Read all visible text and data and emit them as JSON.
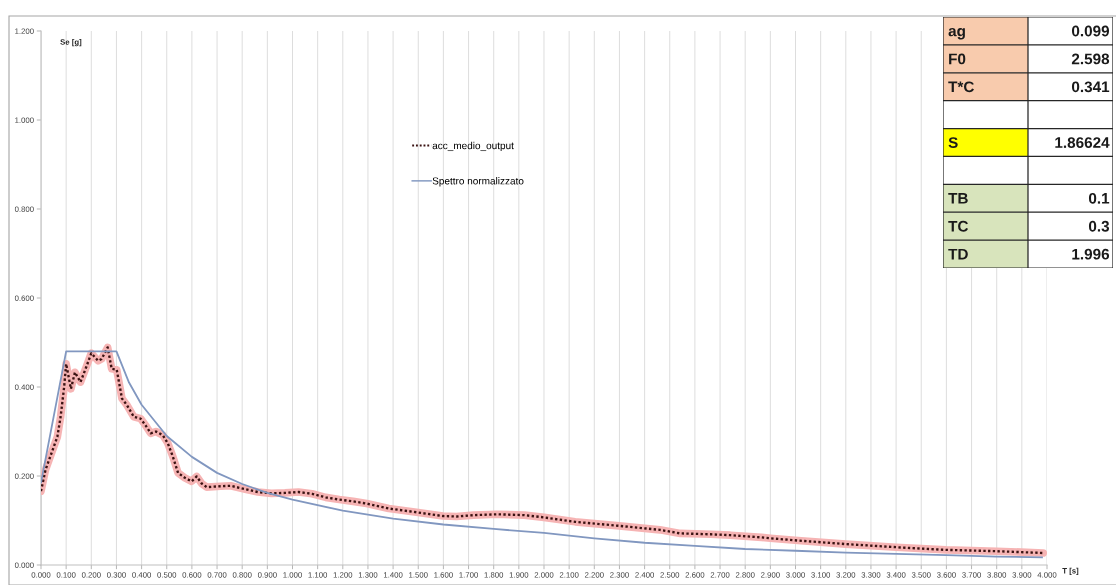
{
  "chart_data": [
    {
      "type": "line",
      "xlabel": "T [s]",
      "ylabel": "Se [g]",
      "xlim": [
        0,
        4
      ],
      "ylim": [
        0,
        1.2
      ],
      "xticks": [
        {
          "value": 0,
          "label": "0.000"
        },
        {
          "value": 0.1,
          "label": "0.100"
        },
        {
          "value": 0.2,
          "label": "0.200"
        },
        {
          "value": 0.3,
          "label": "0.300"
        },
        {
          "value": 0.4,
          "label": "0.400"
        },
        {
          "value": 0.5,
          "label": "0.500"
        },
        {
          "value": 0.6,
          "label": "0.600"
        },
        {
          "value": 0.7,
          "label": "0.700"
        },
        {
          "value": 0.8,
          "label": "0.800"
        },
        {
          "value": 0.9,
          "label": "0.900"
        },
        {
          "value": 1.0,
          "label": "1.000"
        },
        {
          "value": 1.1,
          "label": "1.100"
        },
        {
          "value": 1.2,
          "label": "1.200"
        },
        {
          "value": 1.3,
          "label": "1.300"
        },
        {
          "value": 1.4,
          "label": "1.400"
        },
        {
          "value": 1.5,
          "label": "1.500"
        },
        {
          "value": 1.6,
          "label": "1.600"
        },
        {
          "value": 1.7,
          "label": "1.700"
        },
        {
          "value": 1.8,
          "label": "1.800"
        },
        {
          "value": 1.9,
          "label": "1.900"
        },
        {
          "value": 2.0,
          "label": "2.000"
        },
        {
          "value": 2.1,
          "label": "2.100"
        },
        {
          "value": 2.2,
          "label": "2.200"
        },
        {
          "value": 2.3,
          "label": "2.300"
        },
        {
          "value": 2.4,
          "label": "2.400"
        },
        {
          "value": 2.5,
          "label": "2.500"
        },
        {
          "value": 2.6,
          "label": "2.600"
        },
        {
          "value": 2.7,
          "label": "2.700"
        },
        {
          "value": 2.8,
          "label": "2.800"
        },
        {
          "value": 2.9,
          "label": "2.900"
        },
        {
          "value": 3.0,
          "label": "3.000"
        },
        {
          "value": 3.1,
          "label": "3.100"
        },
        {
          "value": 3.2,
          "label": "3.200"
        },
        {
          "value": 3.3,
          "label": "3.300"
        },
        {
          "value": 3.4,
          "label": "3.400"
        },
        {
          "value": 3.5,
          "label": "3.500"
        },
        {
          "value": 3.6,
          "label": "3.600"
        },
        {
          "value": 3.7,
          "label": "3.700"
        },
        {
          "value": 3.8,
          "label": "3.800"
        },
        {
          "value": 3.9,
          "label": "3.900"
        },
        {
          "value": 4.0,
          "label": "4.000"
        }
      ],
      "yticks": [
        {
          "value": 0,
          "label": "0.000"
        },
        {
          "value": 0.2,
          "label": "0.200"
        },
        {
          "value": 0.4,
          "label": "0.400"
        },
        {
          "value": 0.6,
          "label": "0.600"
        },
        {
          "value": 0.8,
          "label": "0.800"
        },
        {
          "value": 1.0,
          "label": "1.000"
        },
        {
          "value": 1.2,
          "label": "1.200"
        }
      ],
      "grid": "x",
      "legend": "top",
      "series": [
        {
          "name": "acc_medio_output",
          "color": "#3a1212",
          "line_style": "dotted",
          "x": [
            0,
            0.018,
            0.051,
            0.065,
            0.078,
            0.092,
            0.1,
            0.119,
            0.135,
            0.157,
            0.18,
            0.2,
            0.227,
            0.241,
            0.265,
            0.281,
            0.301,
            0.322,
            0.342,
            0.369,
            0.396,
            0.419,
            0.436,
            0.457,
            0.484,
            0.504,
            0.524,
            0.545,
            0.572,
            0.599,
            0.619,
            0.639,
            0.659,
            0.714,
            0.754,
            0.808,
            0.862,
            0.916,
            0.97,
            1.024,
            1.078,
            1.132,
            1.186,
            1.241,
            1.295,
            1.383,
            1.5,
            1.598,
            1.652,
            1.72,
            1.814,
            1.922,
            2.0,
            2.124,
            2.299,
            2.461,
            2.542,
            2.663,
            2.741,
            2.865,
            2.9,
            3.01,
            3.2,
            3.4,
            3.599,
            3.801,
            3.985
          ],
          "values": [
            0.166,
            0.214,
            0.266,
            0.288,
            0.333,
            0.4,
            0.452,
            0.396,
            0.433,
            0.411,
            0.445,
            0.476,
            0.459,
            0.463,
            0.489,
            0.441,
            0.439,
            0.374,
            0.359,
            0.333,
            0.329,
            0.311,
            0.296,
            0.3,
            0.292,
            0.274,
            0.244,
            0.207,
            0.196,
            0.188,
            0.199,
            0.183,
            0.175,
            0.177,
            0.178,
            0.171,
            0.164,
            0.161,
            0.162,
            0.164,
            0.16,
            0.152,
            0.147,
            0.143,
            0.138,
            0.127,
            0.118,
            0.11,
            0.109,
            0.112,
            0.114,
            0.112,
            0.107,
            0.097,
            0.088,
            0.079,
            0.071,
            0.069,
            0.067,
            0.062,
            0.06,
            0.055,
            0.047,
            0.04,
            0.034,
            0.031,
            0.027
          ]
        },
        {
          "name": "Spettro normalizzato",
          "color": "#8197c0",
          "line_style": "solid",
          "x": [
            0,
            0.1,
            0.3,
            0.35,
            0.4,
            0.5,
            0.6,
            0.7,
            0.8,
            0.9,
            1.0,
            1.2,
            1.4,
            1.6,
            1.8,
            2.0,
            2.2,
            2.4,
            2.6,
            2.8,
            3.0,
            3.2,
            3.4,
            3.6,
            3.8,
            3.98
          ],
          "values": [
            0.185,
            0.48,
            0.48,
            0.41,
            0.36,
            0.29,
            0.243,
            0.207,
            0.182,
            0.162,
            0.147,
            0.122,
            0.104,
            0.091,
            0.081,
            0.072,
            0.06,
            0.05,
            0.043,
            0.036,
            0.032,
            0.028,
            0.025,
            0.022,
            0.019,
            0.017
          ]
        }
      ]
    },
    {
      "type": "other",
      "categories": [
        "ag",
        "F0",
        "T*C",
        null,
        "S",
        null,
        "TB",
        "TC",
        "TD"
      ],
      "values": [
        0.099,
        2.598,
        0.341,
        null,
        1.86624,
        null,
        0.1,
        0.3,
        1.996
      ],
      "data_labels": true
    }
  ]
}
